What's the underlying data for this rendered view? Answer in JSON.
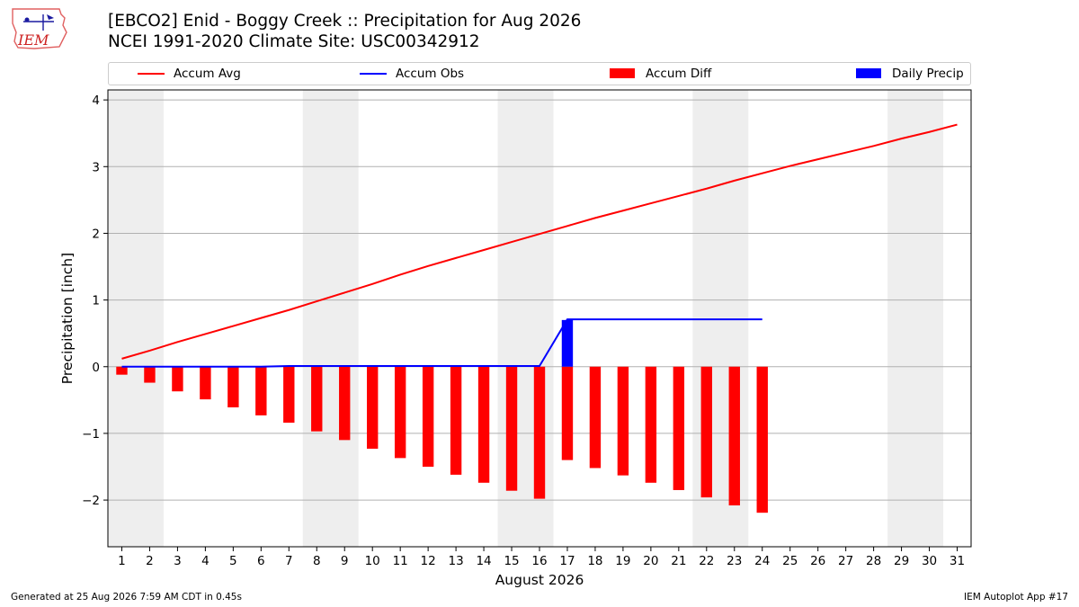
{
  "header": {
    "title_line1": "[EBCO2] Enid - Boggy Creek :: Precipitation for Aug 2026",
    "title_line2": "NCEI 1991-2020 Climate Site: USC00342912"
  },
  "logo": {
    "text": "IEM"
  },
  "legend": {
    "items": [
      {
        "label": "Accum Avg",
        "kind": "line",
        "color": "#ff0000"
      },
      {
        "label": "Accum Obs",
        "kind": "line",
        "color": "#0000ff"
      },
      {
        "label": "Accum Diff",
        "kind": "bar",
        "color": "#ff0000"
      },
      {
        "label": "Daily Precip",
        "kind": "bar",
        "color": "#0000ff"
      }
    ]
  },
  "footer": {
    "generated": "Generated at 25 Aug 2026 7:59 AM CDT in 0.45s",
    "app": "IEM Autoplot App #17"
  },
  "chart_data": {
    "type": "bar",
    "xlabel": "August 2026",
    "ylabel": "Precipitation [inch]",
    "xlim": [
      0.5,
      31.5
    ],
    "ylim": [
      -2.7,
      4.15
    ],
    "yticks": [
      -2,
      -1,
      0,
      1,
      2,
      3,
      4
    ],
    "ytick_labels": [
      "−2",
      "−1",
      "0",
      "1",
      "2",
      "3",
      "4"
    ],
    "xticks": [
      1,
      2,
      3,
      4,
      5,
      6,
      7,
      8,
      9,
      10,
      11,
      12,
      13,
      14,
      15,
      16,
      17,
      18,
      19,
      20,
      21,
      22,
      23,
      24,
      25,
      26,
      27,
      28,
      29,
      30,
      31
    ],
    "grid": "horizontal",
    "weekend_shading": [
      [
        0.5,
        2.5
      ],
      [
        7.5,
        9.5
      ],
      [
        14.5,
        16.5
      ],
      [
        21.5,
        23.5
      ],
      [
        28.5,
        30.5
      ]
    ],
    "accum_avg": {
      "name": "Accum Avg",
      "color": "#ff0000",
      "x": [
        1,
        2,
        3,
        4,
        5,
        6,
        7,
        8,
        9,
        10,
        11,
        12,
        13,
        14,
        15,
        16,
        17,
        18,
        19,
        20,
        21,
        22,
        23,
        24,
        25,
        26,
        27,
        28,
        29,
        30,
        31
      ],
      "y": [
        0.12,
        0.24,
        0.37,
        0.49,
        0.61,
        0.73,
        0.85,
        0.98,
        1.11,
        1.24,
        1.38,
        1.51,
        1.63,
        1.75,
        1.87,
        1.99,
        2.11,
        2.23,
        2.34,
        2.45,
        2.56,
        2.67,
        2.79,
        2.9,
        3.01,
        3.11,
        3.21,
        3.31,
        3.42,
        3.52,
        3.63
      ]
    },
    "accum_obs": {
      "name": "Accum Obs",
      "color": "#0000ff",
      "x": [
        1,
        2,
        3,
        4,
        5,
        6,
        7,
        8,
        9,
        10,
        11,
        12,
        13,
        14,
        15,
        16,
        17,
        18,
        19,
        20,
        21,
        22,
        23,
        24
      ],
      "y": [
        0,
        0,
        0,
        0,
        0,
        0,
        0.01,
        0.01,
        0.01,
        0.01,
        0.01,
        0.01,
        0.01,
        0.01,
        0.01,
        0.01,
        0.71,
        0.71,
        0.71,
        0.71,
        0.71,
        0.71,
        0.71,
        0.71
      ]
    },
    "accum_diff": {
      "name": "Accum Diff",
      "color": "#ff0000",
      "x": [
        1,
        2,
        3,
        4,
        5,
        6,
        7,
        8,
        9,
        10,
        11,
        12,
        13,
        14,
        15,
        16,
        17,
        18,
        19,
        20,
        21,
        22,
        23,
        24
      ],
      "y": [
        -0.12,
        -0.24,
        -0.37,
        -0.49,
        -0.61,
        -0.73,
        -0.84,
        -0.97,
        -1.1,
        -1.23,
        -1.37,
        -1.5,
        -1.62,
        -1.74,
        -1.86,
        -1.98,
        -1.4,
        -1.52,
        -1.63,
        -1.74,
        -1.85,
        -1.96,
        -2.08,
        -2.19
      ]
    },
    "daily_precip": {
      "name": "Daily Precip",
      "color": "#0000ff",
      "x": [
        17
      ],
      "y": [
        0.7
      ]
    }
  }
}
